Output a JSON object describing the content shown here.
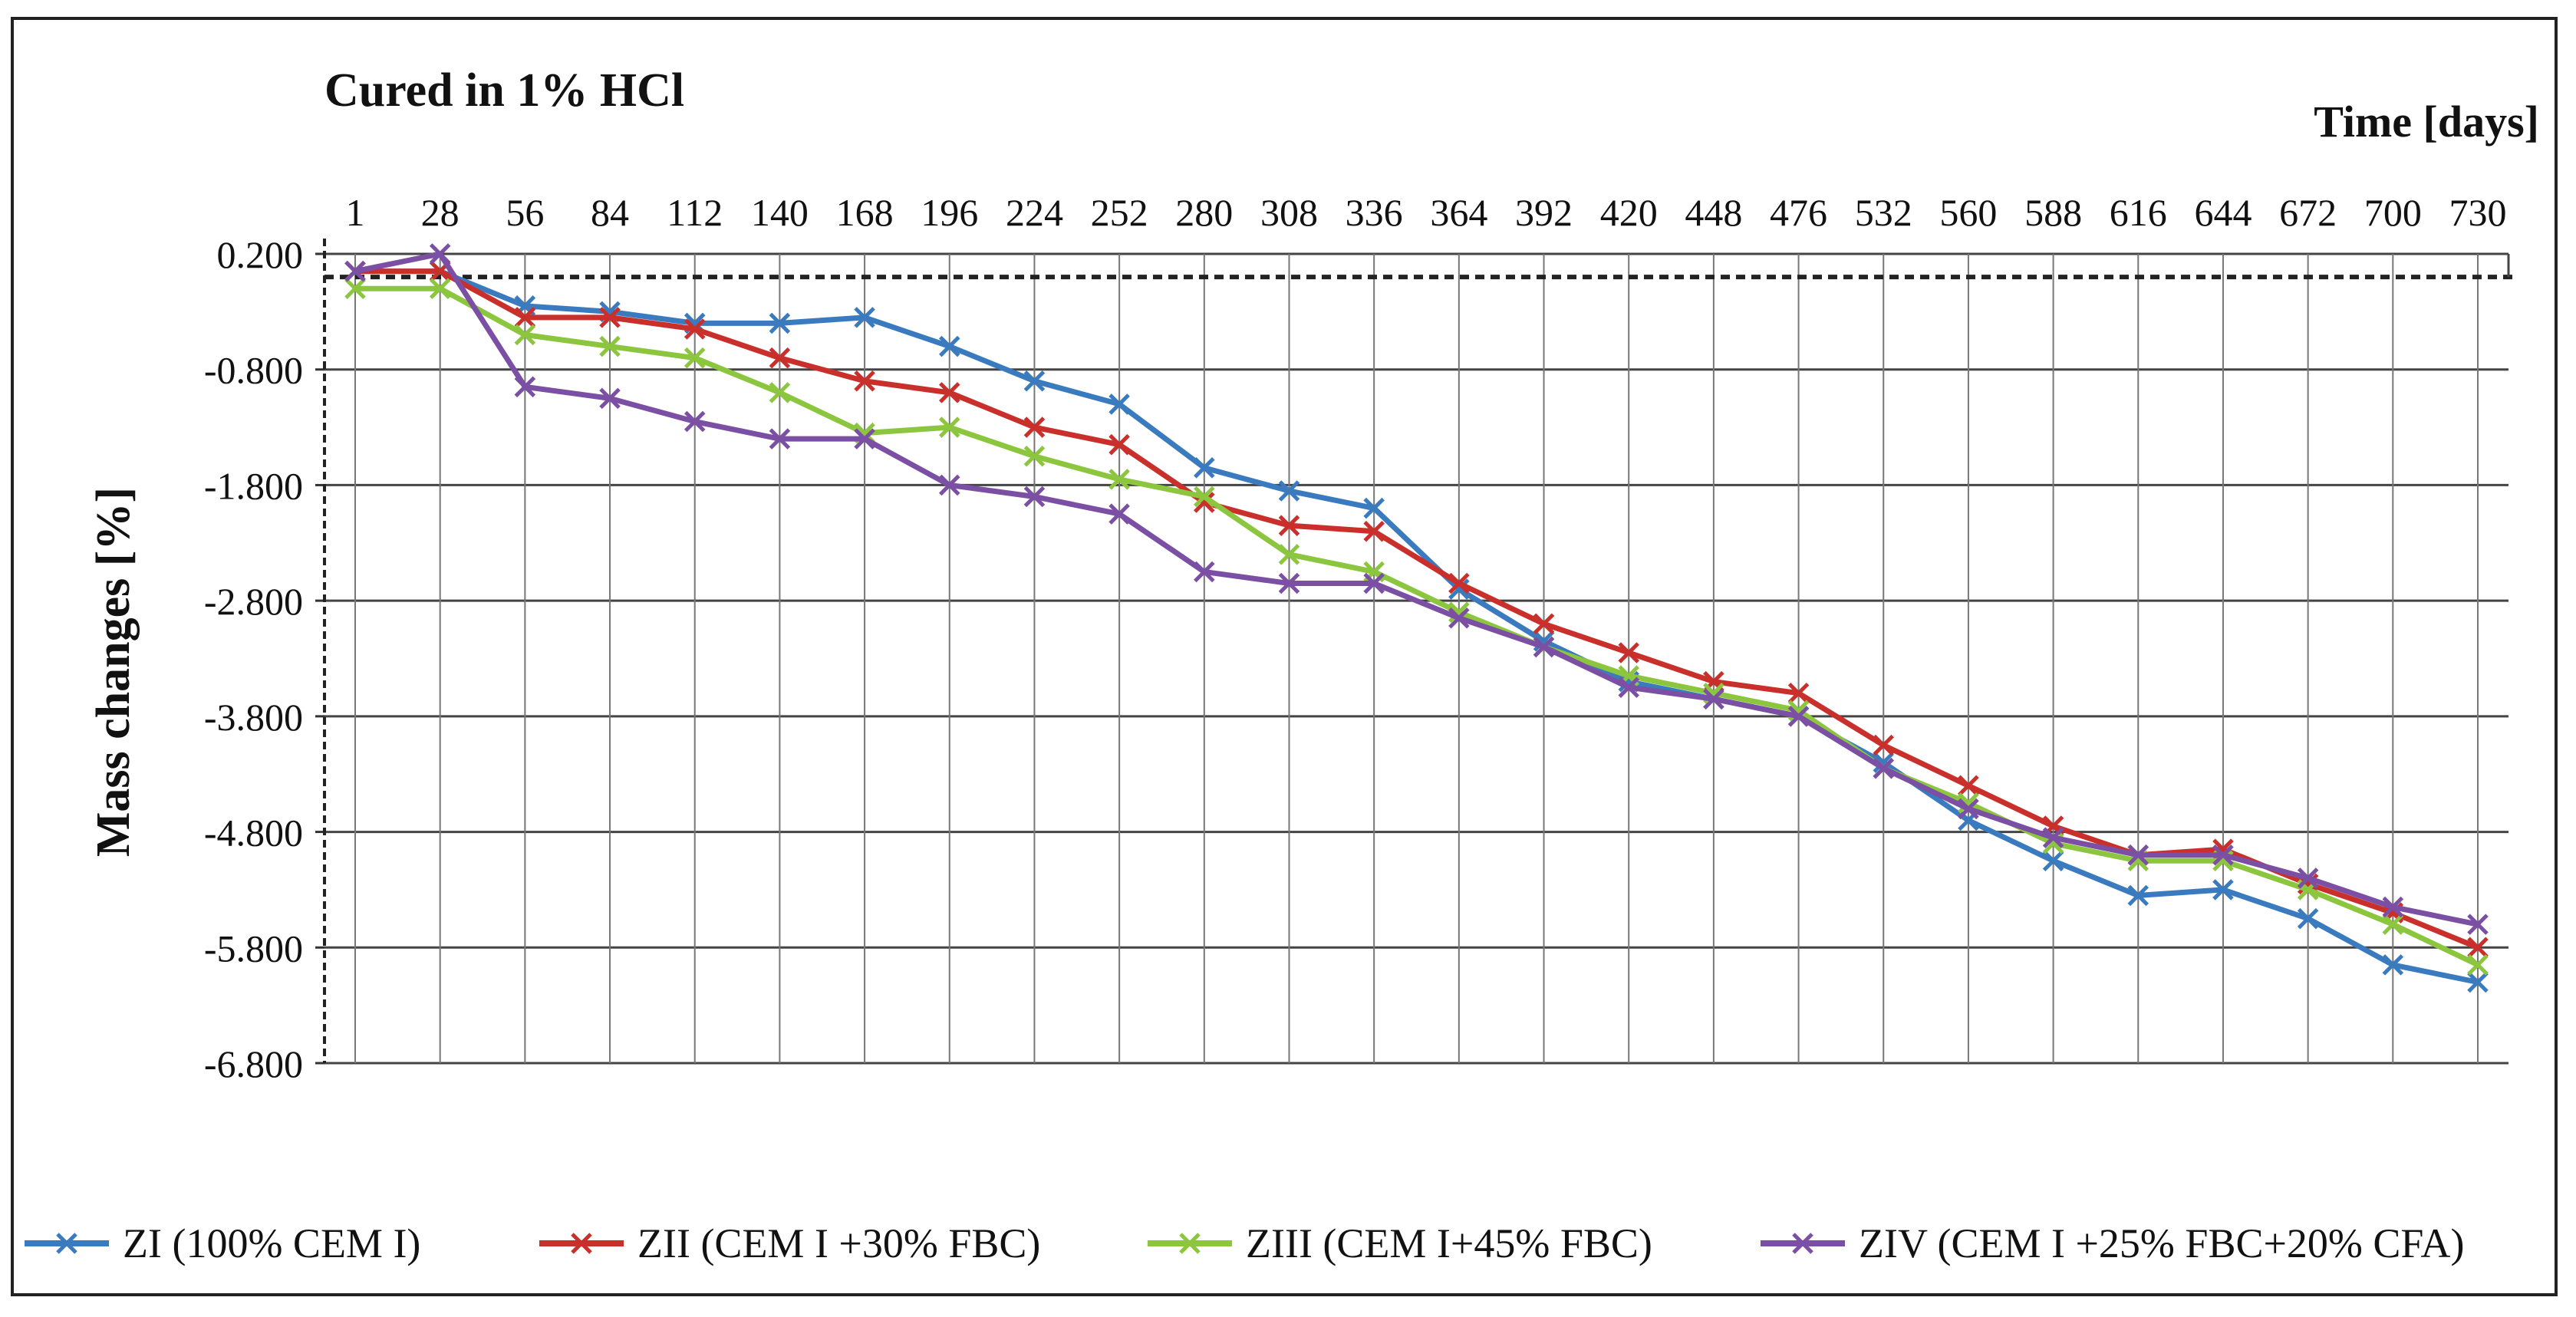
{
  "chart_data": {
    "type": "line",
    "title": "Cured in 1% HCl",
    "xlabel": "Time [days]",
    "ylabel": "Mass changes [%]",
    "ylim": [
      -6.8,
      0.2
    ],
    "yticks": [
      "0.200",
      "-0.800",
      "-1.800",
      "-2.800",
      "-3.800",
      "-4.800",
      "-5.800",
      "-6.800"
    ],
    "ytick_values": [
      0.2,
      -0.8,
      -1.8,
      -2.8,
      -3.8,
      -4.8,
      -5.8,
      -6.8
    ],
    "categories": [
      "1",
      "28",
      "56",
      "84",
      "112",
      "140",
      "168",
      "196",
      "224",
      "252",
      "280",
      "308",
      "336",
      "364",
      "392",
      "420",
      "448",
      "476",
      "532",
      "560",
      "588",
      "616",
      "644",
      "672",
      "700",
      "730"
    ],
    "x_axis_position": "top",
    "grid": true,
    "legend_position": "bottom",
    "series": [
      {
        "name": "ZI (100% CEM I)",
        "color": "#3a7bbf",
        "values": [
          0.05,
          0.05,
          -0.25,
          -0.3,
          -0.4,
          -0.4,
          -0.35,
          -0.6,
          -0.9,
          -1.1,
          -1.65,
          -1.85,
          -2.0,
          -2.7,
          -3.15,
          -3.5,
          -3.65,
          -3.8,
          -4.2,
          -4.7,
          -5.05,
          -5.35,
          -5.3,
          -5.55,
          -5.95,
          -6.1
        ]
      },
      {
        "name": "ZII (CEM I +30% FBC)",
        "color": "#c9302c",
        "values": [
          0.05,
          0.05,
          -0.35,
          -0.35,
          -0.45,
          -0.7,
          -0.9,
          -1.0,
          -1.3,
          -1.45,
          -1.95,
          -2.15,
          -2.2,
          -2.65,
          -3.0,
          -3.25,
          -3.5,
          -3.6,
          -4.05,
          -4.4,
          -4.75,
          -5.0,
          -4.95,
          -5.25,
          -5.5,
          -5.8
        ]
      },
      {
        "name": "ZIII (CEM I+45% FBC)",
        "color": "#8cc63f",
        "values": [
          -0.1,
          -0.1,
          -0.5,
          -0.6,
          -0.7,
          -1.0,
          -1.35,
          -1.3,
          -1.55,
          -1.75,
          -1.9,
          -2.4,
          -2.55,
          -2.9,
          -3.2,
          -3.45,
          -3.6,
          -3.75,
          -4.25,
          -4.55,
          -4.9,
          -5.05,
          -5.05,
          -5.3,
          -5.6,
          -5.95
        ]
      },
      {
        "name": "ZIV (CEM I +25% FBC+20% CFA)",
        "color": "#7b4fa3",
        "values": [
          0.05,
          0.2,
          -0.95,
          -1.05,
          -1.25,
          -1.4,
          -1.4,
          -1.8,
          -1.9,
          -2.05,
          -2.55,
          -2.65,
          -2.65,
          -2.95,
          -3.2,
          -3.55,
          -3.65,
          -3.8,
          -4.25,
          -4.6,
          -4.85,
          -5.0,
          -5.0,
          -5.2,
          -5.45,
          -5.6
        ]
      }
    ]
  }
}
